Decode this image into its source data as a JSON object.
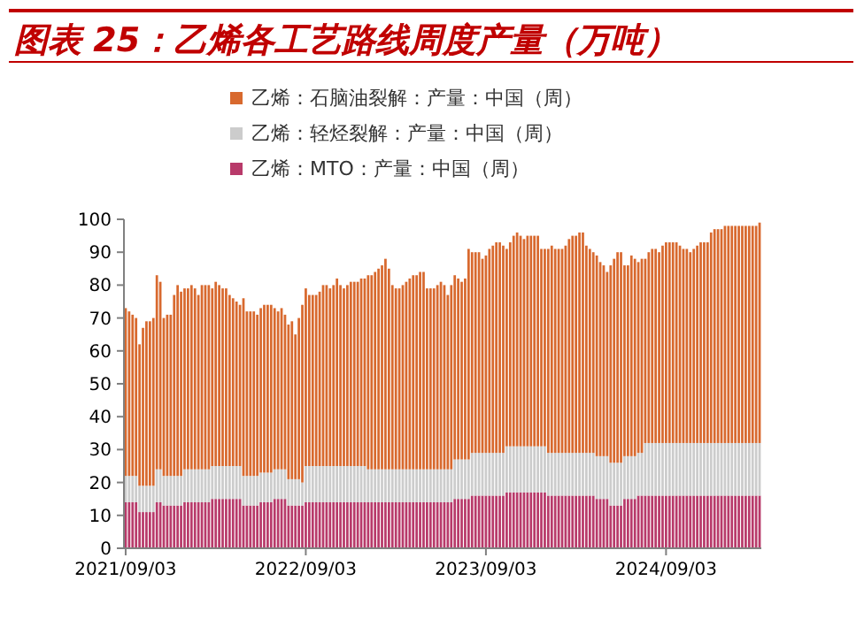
{
  "chart_data": {
    "type": "bar",
    "stacked": true,
    "title": "图表 25：乙烯各工艺路线周度产量（万吨）",
    "categories": [
      "2021/09/03",
      null,
      null,
      null,
      null,
      null,
      null,
      null,
      null,
      null,
      null,
      null,
      null,
      null,
      null,
      null,
      null,
      null,
      null,
      null,
      null,
      null,
      null,
      null,
      null,
      null,
      null,
      null,
      null,
      null,
      null,
      null,
      null,
      null,
      null,
      null,
      null,
      null,
      null,
      null,
      null,
      null,
      null,
      null,
      null,
      null,
      null,
      null,
      null,
      null,
      null,
      null,
      "2022/09/03",
      null,
      null,
      null,
      null,
      null,
      null,
      null,
      null,
      null,
      null,
      null,
      null,
      null,
      null,
      null,
      null,
      null,
      null,
      null,
      null,
      null,
      null,
      null,
      null,
      null,
      null,
      null,
      null,
      null,
      null,
      null,
      null,
      null,
      null,
      null,
      null,
      null,
      null,
      null,
      null,
      null,
      null,
      null,
      null,
      null,
      null,
      null,
      null,
      null,
      null,
      null,
      "2023/09/03",
      null,
      null,
      null,
      null,
      null,
      null,
      null,
      null,
      null,
      null,
      null,
      null,
      null,
      null,
      null,
      null,
      null,
      null,
      null,
      null,
      null,
      null,
      null,
      null,
      null,
      null,
      null,
      null,
      null,
      null,
      null,
      null,
      null,
      null,
      null,
      null,
      null,
      null,
      null,
      null,
      null,
      null,
      null,
      null,
      null,
      null,
      null,
      null,
      null,
      null,
      null,
      "2024/09/03",
      null,
      null,
      null,
      null,
      null,
      null,
      null,
      null,
      null,
      null,
      null,
      null,
      null,
      null,
      null,
      null,
      null,
      null,
      null,
      null,
      null,
      null,
      null,
      null,
      null,
      null,
      null
    ],
    "series": [
      {
        "name": "乙烯：MTO：产量：中国（周）",
        "color": "#b83a6a",
        "values": [
          14,
          14,
          14,
          14,
          11,
          11,
          11,
          11,
          11,
          14,
          14,
          13,
          13,
          13,
          13,
          13,
          13,
          14,
          14,
          14,
          14,
          14,
          14,
          14,
          14,
          15,
          15,
          15,
          15,
          15,
          15,
          15,
          15,
          15,
          13,
          13,
          13,
          13,
          13,
          14,
          14,
          14,
          14,
          15,
          15,
          15,
          15,
          13,
          13,
          13,
          13,
          13,
          14,
          14,
          14,
          14,
          14,
          14,
          14,
          14,
          14,
          14,
          14,
          14,
          14,
          14,
          14,
          14,
          14,
          14,
          14,
          14,
          14,
          14,
          14,
          14,
          14,
          14,
          14,
          14,
          14,
          14,
          14,
          14,
          14,
          14,
          14,
          14,
          14,
          14,
          14,
          14,
          14,
          14,
          14,
          15,
          15,
          15,
          15,
          15,
          16,
          16,
          16,
          16,
          16,
          16,
          16,
          16,
          16,
          16,
          17,
          17,
          17,
          17,
          17,
          17,
          17,
          17,
          17,
          17,
          17,
          17,
          16,
          16,
          16,
          16,
          16,
          16,
          16,
          16,
          16,
          16,
          16,
          16,
          16,
          16,
          15,
          15,
          15,
          15,
          13,
          13,
          13,
          13,
          15,
          15,
          15,
          15,
          16,
          16,
          16,
          16,
          16,
          16,
          16,
          16,
          16,
          16,
          16,
          16,
          16,
          16,
          16,
          16,
          16,
          16,
          16,
          16,
          16,
          16,
          16,
          16,
          16,
          16,
          16,
          16,
          16,
          16,
          16,
          16,
          16,
          16,
          16,
          16
        ]
      },
      {
        "name": "乙烯：轻烃裂解：产量：中国（周）",
        "color": "#cccccc",
        "values": [
          8,
          8,
          8,
          8,
          8,
          8,
          8,
          8,
          8,
          10,
          10,
          9,
          9,
          9,
          9,
          9,
          9,
          10,
          10,
          10,
          10,
          10,
          10,
          10,
          10,
          10,
          10,
          10,
          10,
          10,
          10,
          10,
          10,
          10,
          9,
          9,
          9,
          9,
          9,
          9,
          9,
          9,
          9,
          9,
          9,
          9,
          9,
          8,
          8,
          8,
          8,
          7,
          11,
          11,
          11,
          11,
          11,
          11,
          11,
          11,
          11,
          11,
          11,
          11,
          11,
          11,
          11,
          11,
          11,
          11,
          10,
          10,
          10,
          10,
          10,
          10,
          10,
          10,
          10,
          10,
          10,
          10,
          10,
          10,
          10,
          10,
          10,
          10,
          10,
          10,
          10,
          10,
          10,
          10,
          10,
          12,
          12,
          12,
          12,
          12,
          13,
          13,
          13,
          13,
          13,
          13,
          13,
          13,
          13,
          13,
          14,
          14,
          14,
          14,
          14,
          14,
          14,
          14,
          14,
          14,
          14,
          14,
          13,
          13,
          13,
          13,
          13,
          13,
          13,
          13,
          13,
          13,
          13,
          13,
          13,
          13,
          13,
          13,
          13,
          13,
          13,
          13,
          13,
          13,
          13,
          13,
          13,
          13,
          13,
          13,
          16,
          16,
          16,
          16,
          16,
          16,
          16,
          16,
          16,
          16,
          16,
          16,
          16,
          16,
          16,
          16,
          16,
          16,
          16,
          16,
          16,
          16,
          16,
          16,
          16,
          16,
          16,
          16,
          16,
          16,
          16,
          16,
          16,
          16
        ]
      },
      {
        "name": "乙烯：石脑油裂解：产量：中国（周）",
        "color": "#d8692e",
        "values": [
          51,
          50,
          49,
          48,
          43,
          48,
          50,
          50,
          51,
          59,
          57,
          48,
          49,
          49,
          55,
          58,
          56,
          55,
          55,
          56,
          55,
          53,
          56,
          56,
          56,
          54,
          56,
          55,
          54,
          54,
          52,
          51,
          50,
          49,
          54,
          50,
          50,
          50,
          49,
          50,
          51,
          51,
          51,
          49,
          48,
          49,
          47,
          47,
          48,
          44,
          49,
          54,
          54,
          52,
          52,
          52,
          53,
          55,
          55,
          54,
          55,
          57,
          55,
          54,
          55,
          56,
          56,
          56,
          57,
          57,
          59,
          59,
          60,
          61,
          62,
          64,
          61,
          56,
          55,
          55,
          56,
          57,
          58,
          59,
          59,
          60,
          60,
          55,
          55,
          55,
          56,
          57,
          56,
          53,
          56,
          56,
          55,
          54,
          55,
          64,
          61,
          61,
          61,
          59,
          60,
          62,
          63,
          64,
          64,
          63,
          60,
          62,
          64,
          65,
          64,
          63,
          64,
          64,
          64,
          64,
          60,
          60,
          62,
          63,
          62,
          62,
          62,
          63,
          65,
          66,
          66,
          67,
          67,
          63,
          62,
          61,
          61,
          59,
          58,
          56,
          60,
          62,
          64,
          64,
          58,
          58,
          61,
          60,
          58,
          59,
          56,
          58,
          59,
          59,
          58,
          60,
          61,
          61,
          61,
          61,
          60,
          59,
          59,
          58,
          59,
          60,
          61,
          61,
          61,
          64,
          65,
          65,
          65,
          66,
          66,
          66,
          66,
          66,
          66,
          66,
          66,
          66,
          66,
          67
        ]
      }
    ],
    "ylim": [
      0,
      100
    ],
    "yticks": [
      0,
      10,
      20,
      30,
      40,
      50,
      60,
      70,
      80,
      90,
      100
    ],
    "legend": "top"
  }
}
